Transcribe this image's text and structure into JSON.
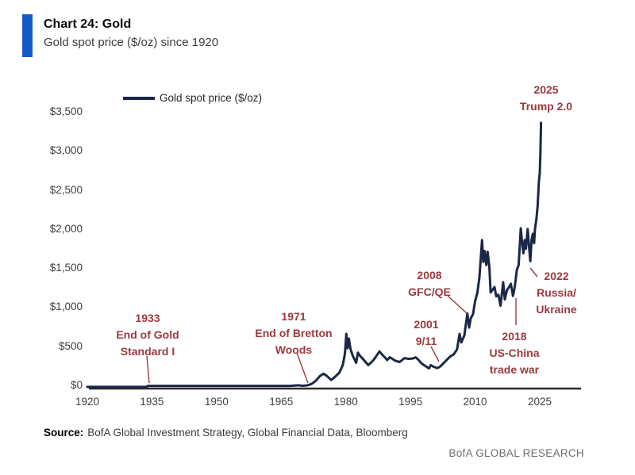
{
  "header": {
    "title": "Chart 24: Gold",
    "subtitle": "Gold spot price ($/oz) since 1920"
  },
  "source": {
    "prefix": "Source:",
    "text": "BofA Global Investment Strategy, Global Financial Data, Bloomberg"
  },
  "brand": "BofA GLOBAL RESEARCH",
  "colors": {
    "accent_bar": "#1659c8",
    "line": "#1b2746",
    "annotation": "#9a3a3e",
    "axis": "#2b2b2b"
  },
  "chart_data": {
    "type": "line",
    "title": "Chart 24: Gold",
    "subtitle": "Gold spot price ($/oz) since 1920",
    "legend": [
      {
        "label": "Gold spot price ($/oz)"
      }
    ],
    "legend_position": "top-left",
    "grid": false,
    "xlabel": "",
    "ylabel": "",
    "xlim": [
      1918,
      2035
    ],
    "ylim": [
      0,
      3500
    ],
    "x_ticks": [
      1920,
      1935,
      1950,
      1965,
      1980,
      1995,
      2010,
      2025
    ],
    "y_ticks": [
      {
        "v": 0,
        "label": "$0"
      },
      {
        "v": 500,
        "label": "$500"
      },
      {
        "v": 1000,
        "label": "$1,000"
      },
      {
        "v": 1500,
        "label": "$1,500"
      },
      {
        "v": 2000,
        "label": "$2,000"
      },
      {
        "v": 2500,
        "label": "$2,500"
      },
      {
        "v": 3000,
        "label": "$3,000"
      },
      {
        "v": 3500,
        "label": "$3,500"
      }
    ],
    "series": [
      {
        "name": "Gold spot price ($/oz)",
        "points": [
          [
            1920,
            21
          ],
          [
            1924,
            21
          ],
          [
            1928,
            21
          ],
          [
            1932,
            21
          ],
          [
            1933.8,
            21
          ],
          [
            1934,
            35
          ],
          [
            1938,
            34
          ],
          [
            1943,
            35
          ],
          [
            1948,
            35
          ],
          [
            1953,
            35
          ],
          [
            1958,
            35
          ],
          [
            1963,
            35
          ],
          [
            1967,
            35
          ],
          [
            1968,
            39
          ],
          [
            1969,
            42
          ],
          [
            1970,
            36
          ],
          [
            1971,
            41
          ],
          [
            1972,
            58
          ],
          [
            1973,
            97
          ],
          [
            1974,
            160
          ],
          [
            1974.8,
            190
          ],
          [
            1975.5,
            165
          ],
          [
            1976.6,
            110
          ],
          [
            1977.5,
            150
          ],
          [
            1978.5,
            205
          ],
          [
            1979.3,
            300
          ],
          [
            1979.8,
            450
          ],
          [
            1980.1,
            700
          ],
          [
            1980.4,
            515
          ],
          [
            1980.7,
            640
          ],
          [
            1981.1,
            500
          ],
          [
            1981.6,
            420
          ],
          [
            1982.4,
            330
          ],
          [
            1982.8,
            460
          ],
          [
            1983.2,
            424
          ],
          [
            1983.8,
            390
          ],
          [
            1984.5,
            345
          ],
          [
            1985.2,
            300
          ],
          [
            1985.8,
            330
          ],
          [
            1986.5,
            370
          ],
          [
            1987.8,
            475
          ],
          [
            1988.5,
            430
          ],
          [
            1989.2,
            390
          ],
          [
            1989.6,
            365
          ],
          [
            1990.2,
            400
          ],
          [
            1990.8,
            380
          ],
          [
            1991.5,
            355
          ],
          [
            1992.5,
            340
          ],
          [
            1993.6,
            390
          ],
          [
            1994.5,
            380
          ],
          [
            1995.5,
            385
          ],
          [
            1996.2,
            400
          ],
          [
            1996.8,
            370
          ],
          [
            1997.6,
            320
          ],
          [
            1998.4,
            290
          ],
          [
            1999.3,
            258
          ],
          [
            1999.7,
            300
          ],
          [
            2000.3,
            280
          ],
          [
            2001.2,
            262
          ],
          [
            2001.8,
            278
          ],
          [
            2002.5,
            315
          ],
          [
            2003.3,
            360
          ],
          [
            2004.2,
            410
          ],
          [
            2005,
            435
          ],
          [
            2005.8,
            500
          ],
          [
            2006.4,
            700
          ],
          [
            2006.8,
            590
          ],
          [
            2007.5,
            680
          ],
          [
            2008.2,
            960
          ],
          [
            2008.6,
            780
          ],
          [
            2009,
            900
          ],
          [
            2009.5,
            950
          ],
          [
            2010,
            1120
          ],
          [
            2010.5,
            1220
          ],
          [
            2011,
            1420
          ],
          [
            2011.6,
            1900
          ],
          [
            2011.9,
            1620
          ],
          [
            2012.2,
            1760
          ],
          [
            2012.6,
            1580
          ],
          [
            2012.9,
            1750
          ],
          [
            2013.3,
            1560
          ],
          [
            2013.6,
            1230
          ],
          [
            2014,
            1260
          ],
          [
            2014.5,
            1300
          ],
          [
            2014.9,
            1180
          ],
          [
            2015.4,
            1200
          ],
          [
            2015.9,
            1060
          ],
          [
            2016.5,
            1360
          ],
          [
            2016.9,
            1140
          ],
          [
            2017.4,
            1260
          ],
          [
            2017.8,
            1290
          ],
          [
            2018.3,
            1340
          ],
          [
            2018.8,
            1185
          ],
          [
            2019.2,
            1300
          ],
          [
            2019.7,
            1520
          ],
          [
            2020.1,
            1580
          ],
          [
            2020.6,
            2050
          ],
          [
            2020.9,
            1870
          ],
          [
            2021.2,
            1730
          ],
          [
            2021.5,
            1900
          ],
          [
            2021.8,
            1790
          ],
          [
            2022.2,
            2040
          ],
          [
            2022.5,
            1830
          ],
          [
            2022.8,
            1630
          ],
          [
            2023.1,
            1900
          ],
          [
            2023.4,
            1980
          ],
          [
            2023.7,
            1860
          ],
          [
            2023.9,
            2040
          ],
          [
            2024.2,
            2160
          ],
          [
            2024.5,
            2330
          ],
          [
            2024.8,
            2650
          ],
          [
            2025,
            2750
          ],
          [
            2025.15,
            3000
          ],
          [
            2025.3,
            3400
          ]
        ]
      }
    ],
    "annotations": [
      {
        "id": "gold-standard",
        "lines": [
          "1933",
          "End of Gold",
          "Standard I"
        ],
        "year": 1933,
        "value": 21
      },
      {
        "id": "bretton-woods",
        "lines": [
          "1971",
          "End of Bretton",
          "Woods"
        ],
        "year": 1971,
        "value": 41
      },
      {
        "id": "nine-eleven",
        "lines": [
          "2001",
          "9/11"
        ],
        "year": 2001,
        "value": 265
      },
      {
        "id": "gfc-qe",
        "lines": [
          "2008",
          "GFC/QE"
        ],
        "year": 2008,
        "value": 900
      },
      {
        "id": "us-china",
        "lines": [
          "2018",
          "US-China",
          "trade war"
        ],
        "year": 2018,
        "value": 1185
      },
      {
        "id": "russia-ukraine",
        "lines": [
          "2022",
          "Russia/",
          "Ukraine"
        ],
        "year": 2022,
        "value": 1630
      },
      {
        "id": "trump",
        "lines": [
          "2025",
          "Trump 2.0"
        ],
        "year": 2025,
        "value": 3400
      }
    ]
  }
}
